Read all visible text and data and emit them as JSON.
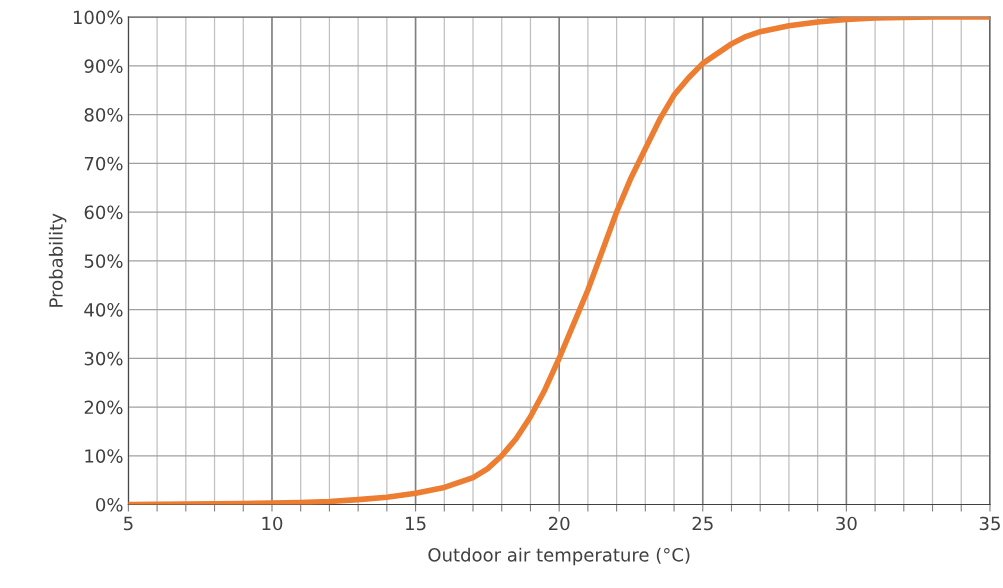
{
  "chart_data": {
    "type": "line",
    "xlabel": "Outdoor air temperature (°C)",
    "ylabel": "Probability",
    "x": [
      5,
      7,
      9,
      10,
      11,
      12,
      13,
      14,
      15,
      16,
      17,
      17.5,
      18,
      18.5,
      19,
      19.5,
      20,
      20.5,
      21,
      21.5,
      22,
      22.5,
      23,
      23.5,
      24,
      24.5,
      25,
      25.5,
      26,
      26.5,
      27,
      28,
      29,
      30,
      31,
      33,
      35
    ],
    "series": [
      {
        "color": "#ed7d31",
        "values": [
          0,
          0.1,
          0.2,
          0.3,
          0.4,
          0.6,
          1,
          1.5,
          2.3,
          3.5,
          5.5,
          7.3,
          10,
          13.5,
          18,
          23.5,
          30,
          37,
          44,
          52,
          60,
          67,
          73,
          79,
          84,
          87.5,
          90.5,
          92.5,
          94.5,
          96,
          97,
          98.2,
          99,
          99.5,
          99.8,
          100,
          100
        ]
      }
    ],
    "xlim": [
      5,
      35
    ],
    "xticks": [
      5,
      {
        "value": 6,
        "label": null
      },
      {
        "value": 7,
        "label": null
      },
      {
        "value": 8,
        "label": null
      },
      {
        "value": 9,
        "label": null
      },
      10,
      {
        "value": 11,
        "label": null
      },
      {
        "value": 12,
        "label": null
      },
      {
        "value": 13,
        "label": null
      },
      {
        "value": 14,
        "label": null
      },
      15,
      {
        "value": 16,
        "label": null
      },
      {
        "value": 17,
        "label": null
      },
      {
        "value": 18,
        "label": null
      },
      {
        "value": 19,
        "label": null
      },
      20,
      {
        "value": 21,
        "label": null
      },
      {
        "value": 22,
        "label": null
      },
      {
        "value": 23,
        "label": null
      },
      {
        "value": 24,
        "label": null
      },
      25,
      {
        "value": 26,
        "label": null
      },
      {
        "value": 27,
        "label": null
      },
      {
        "value": 28,
        "label": null
      },
      {
        "value": 29,
        "label": null
      },
      30,
      {
        "value": 31,
        "label": null
      },
      {
        "value": 32,
        "label": null
      },
      {
        "value": 33,
        "label": null
      },
      {
        "value": 34,
        "label": null
      },
      35
    ],
    "ylim": [
      0,
      100
    ],
    "yticks": [
      {
        "value": 0,
        "label": "0%"
      },
      {
        "value": 10,
        "label": "10%"
      },
      {
        "value": 20,
        "label": "20%"
      },
      {
        "value": 30,
        "label": "30%"
      },
      {
        "value": 40,
        "label": "40%"
      },
      {
        "value": 50,
        "label": "50%"
      },
      {
        "value": 60,
        "label": "60%"
      },
      {
        "value": 70,
        "label": "70%"
      },
      {
        "value": 80,
        "label": "80%"
      },
      {
        "value": 90,
        "label": "90%"
      },
      {
        "value": 100,
        "label": "100%"
      }
    ],
    "grid": true,
    "marker": "none",
    "line_style": "solid"
  }
}
